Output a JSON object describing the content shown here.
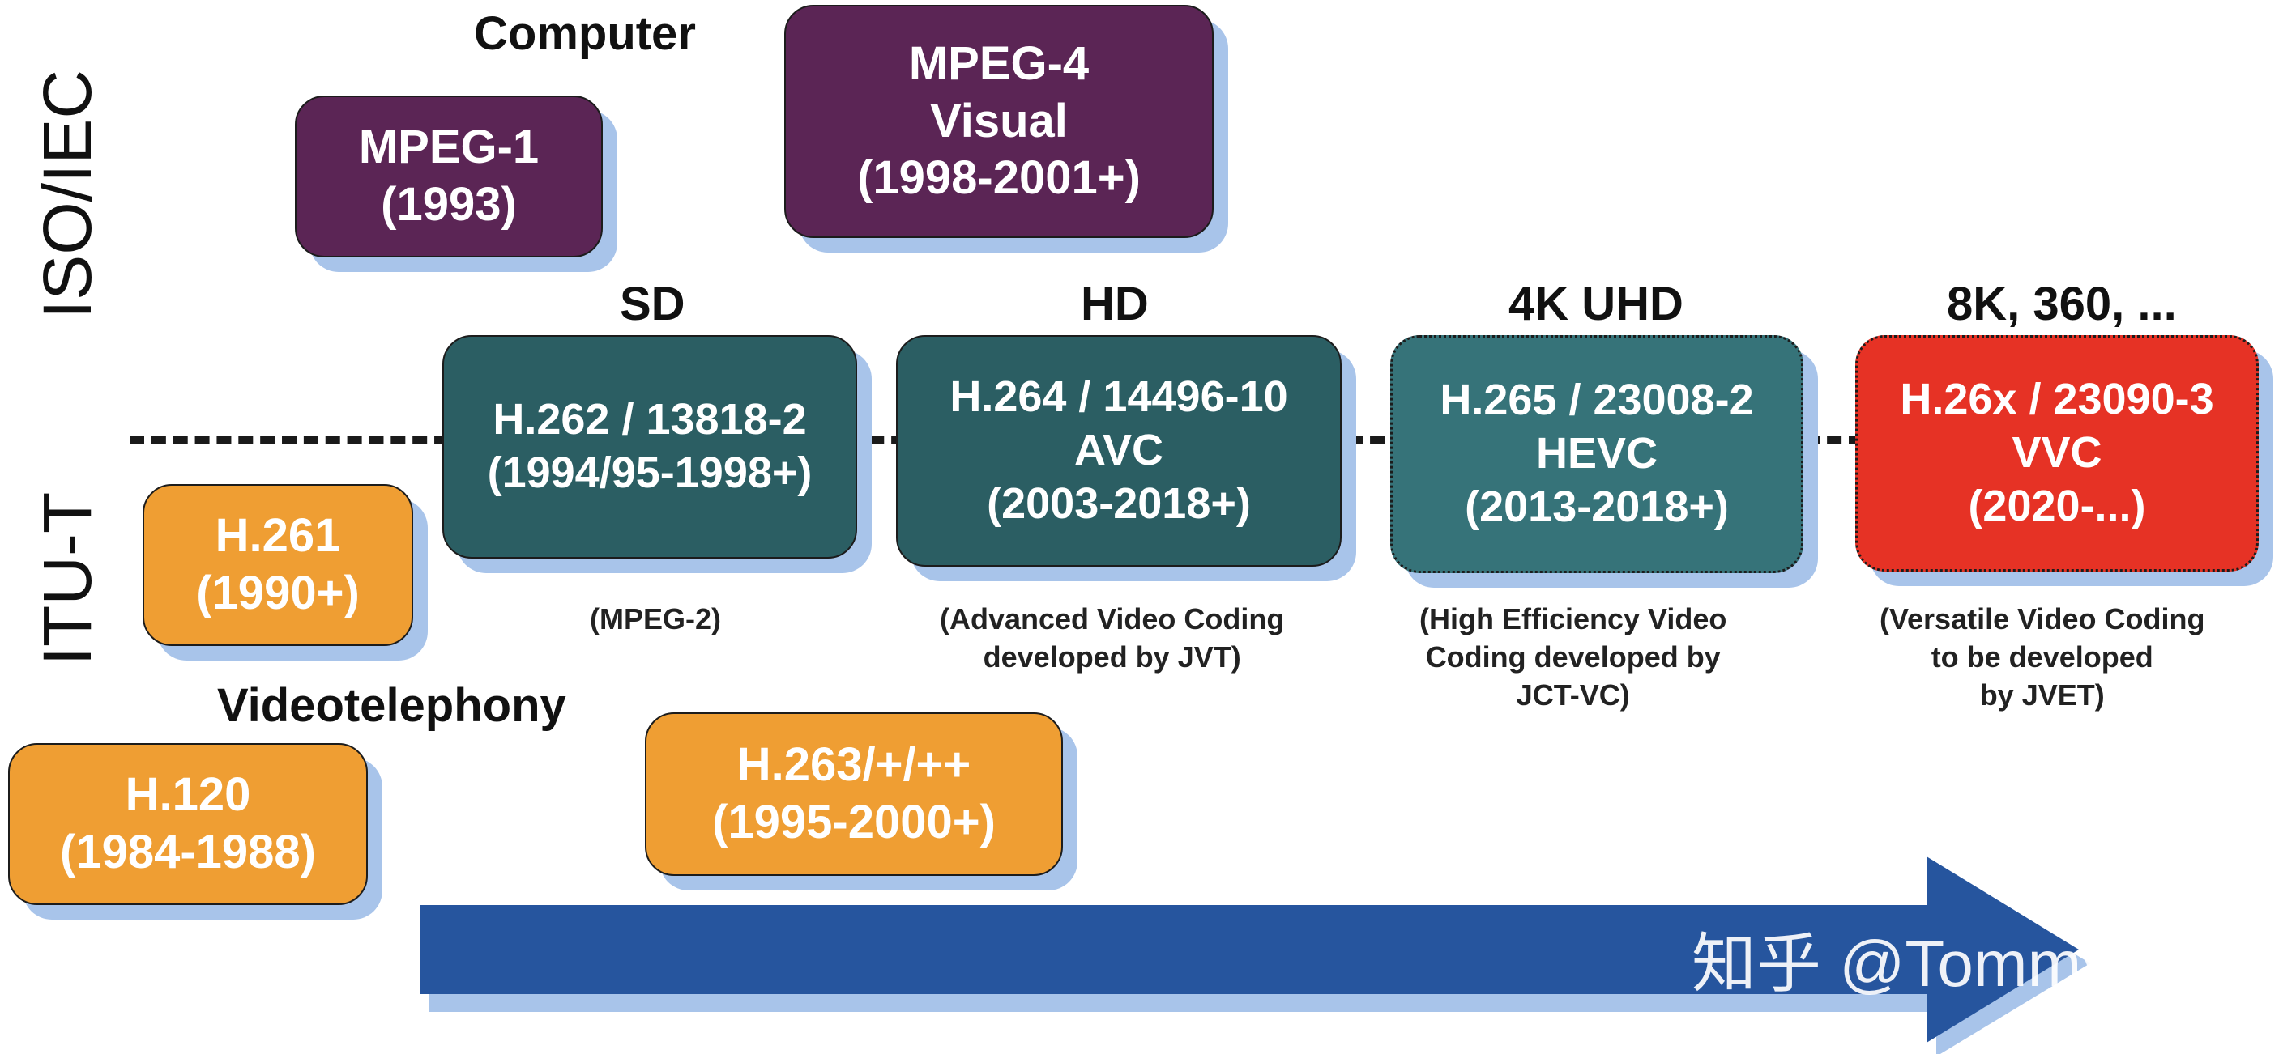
{
  "side_labels": {
    "iso": "ISO/IEC",
    "itu": "ITU-T"
  },
  "category_labels": {
    "computer": "Computer",
    "videotelephony": "Videotelephony",
    "sd": "SD",
    "hd": "HD",
    "uhd": "4K UHD",
    "next": "8K, 360, ..."
  },
  "boxes": {
    "mpeg1": [
      "MPEG-1",
      "(1993)"
    ],
    "mpeg4": [
      "MPEG-4",
      "Visual",
      "(1998-2001+)"
    ],
    "h261": [
      "H.261",
      "(1990+)"
    ],
    "h120": [
      "H.120",
      "(1984-1988)"
    ],
    "h262": [
      "H.262 / 13818-2",
      "(1994/95-1998+)"
    ],
    "h263": [
      "H.263/+/++",
      "(1995-2000+)"
    ],
    "h264": [
      "H.264 / 14496-10",
      "AVC",
      "(2003-2018+)"
    ],
    "h265": [
      "H.265 / 23008-2",
      "HEVC",
      "(2013-2018+)"
    ],
    "h26x": [
      "H.26x / 23090-3",
      "VVC",
      "(2020-...)"
    ]
  },
  "notes": {
    "mpeg2": [
      "(MPEG-2)"
    ],
    "avc": [
      "(Advanced Video Coding",
      "developed by JVT)"
    ],
    "hevc": [
      "(High  Efficiency Video",
      "Coding developed by",
      "JCT-VC)"
    ],
    "vvc": [
      "(Versatile Video Coding",
      "to be developed",
      "by JVET)"
    ]
  },
  "watermark": "知乎 @Tommy哥",
  "colors": {
    "purple": "#5b2555",
    "orange": "#ef9e33",
    "teal": "#2b5e63",
    "teal_light": "#367379",
    "red": "#e63225",
    "arrow": "#26559e",
    "shadow": "#a8c4ea"
  }
}
